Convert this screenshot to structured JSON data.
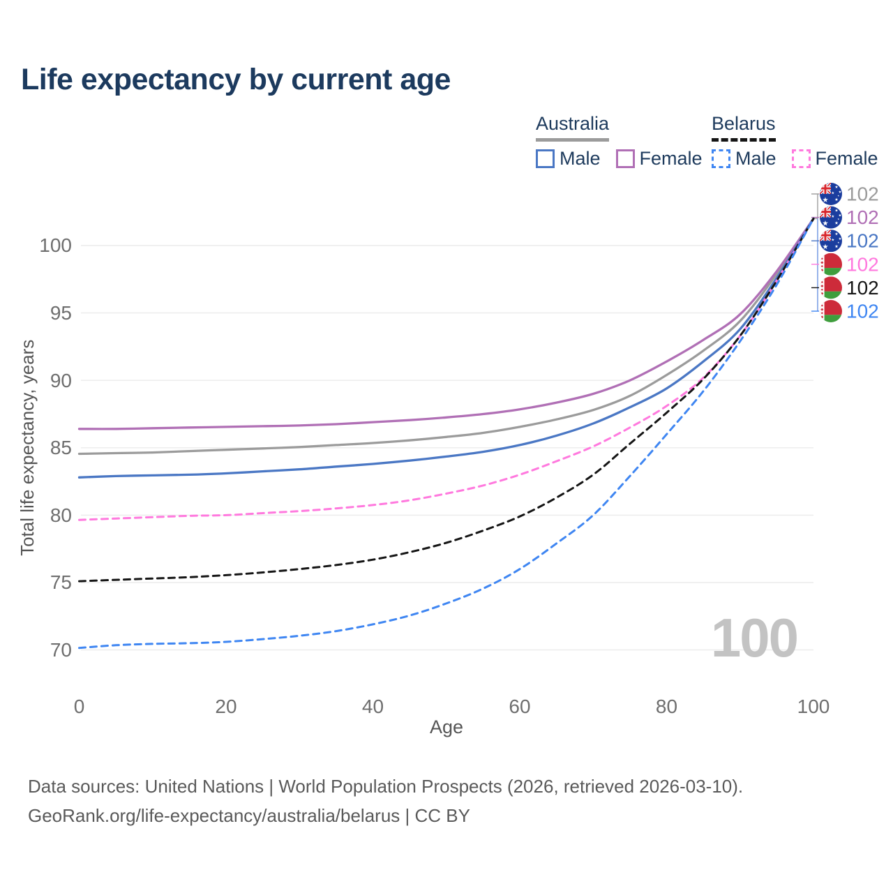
{
  "title": "Life expectancy by current age",
  "watermark": "100",
  "legend": {
    "groups": [
      {
        "country": "Australia",
        "items": [
          {
            "label": "Male"
          },
          {
            "label": "Female"
          }
        ]
      },
      {
        "country": "Belarus",
        "items": [
          {
            "label": "Male"
          },
          {
            "label": "Female"
          }
        ]
      }
    ]
  },
  "footer": {
    "line1": "Data sources: United Nations | World Population Prospects (2026, retrieved 2026-03-10).",
    "line2": "GeoRank.org/life-expectancy/australia/belarus | CC BY"
  },
  "chart_data": {
    "type": "line",
    "title": "Life expectancy by current age",
    "xlabel": "Age",
    "ylabel": "Total life expectancy, years",
    "x_ticks": [
      0,
      20,
      40,
      60,
      80,
      100
    ],
    "y_ticks": [
      70,
      75,
      80,
      85,
      90,
      95,
      100
    ],
    "xlim": [
      0,
      100
    ],
    "ylim": [
      68.5,
      103
    ],
    "grid": "horizontal",
    "legend_position": "top-right",
    "annotation_current_age": "100",
    "x": [
      0,
      5,
      10,
      15,
      20,
      25,
      30,
      35,
      40,
      45,
      50,
      55,
      60,
      65,
      70,
      75,
      80,
      85,
      90,
      95,
      100
    ],
    "series": [
      {
        "id": "australia-total",
        "name": "Australia Total",
        "country": "Australia",
        "sex": "Total",
        "color": "#9b9b9b",
        "style": "solid",
        "flag": "australia-flag-icon",
        "end_label": "102",
        "values": [
          84.55,
          84.6,
          84.65,
          84.75,
          84.85,
          84.95,
          85.05,
          85.2,
          85.35,
          85.55,
          85.8,
          86.1,
          86.55,
          87.1,
          87.8,
          88.85,
          90.4,
          92.2,
          94.4,
          97.9,
          102
        ]
      },
      {
        "id": "australia-female",
        "name": "Australia Female",
        "country": "Australia",
        "sex": "Female",
        "color": "#b06fb5",
        "style": "solid",
        "flag": "australia-flag-icon",
        "end_label": "102",
        "values": [
          86.4,
          86.4,
          86.45,
          86.5,
          86.55,
          86.6,
          86.65,
          86.75,
          86.9,
          87.05,
          87.25,
          87.5,
          87.85,
          88.35,
          89.0,
          90.0,
          91.4,
          93.0,
          94.9,
          98.1,
          102
        ]
      },
      {
        "id": "australia-male",
        "name": "Australia Male",
        "country": "Australia",
        "sex": "Male",
        "color": "#4a77c4",
        "style": "solid",
        "flag": "australia-flag-icon",
        "end_label": "102",
        "values": [
          82.8,
          82.9,
          82.95,
          83.0,
          83.1,
          83.25,
          83.4,
          83.6,
          83.8,
          84.05,
          84.35,
          84.7,
          85.2,
          85.9,
          86.8,
          88.0,
          89.4,
          91.4,
          93.8,
          97.6,
          102
        ]
      },
      {
        "id": "belarus-female",
        "name": "Belarus Female",
        "country": "Belarus",
        "sex": "Female",
        "color": "#ff79de",
        "style": "dashed",
        "flag": "belarus-flag-icon",
        "end_label": "102",
        "values": [
          79.65,
          79.75,
          79.85,
          79.95,
          80.0,
          80.15,
          80.3,
          80.5,
          80.75,
          81.1,
          81.6,
          82.2,
          83.0,
          84.0,
          85.1,
          86.5,
          88.1,
          90.2,
          93.3,
          97.4,
          102
        ]
      },
      {
        "id": "belarus-total",
        "name": "Belarus Total",
        "country": "Belarus",
        "sex": "Total",
        "color": "#151515",
        "style": "dashed",
        "flag": "belarus-flag-icon",
        "end_label": "102",
        "values": [
          75.1,
          75.2,
          75.3,
          75.4,
          75.55,
          75.75,
          76.0,
          76.3,
          76.7,
          77.25,
          77.95,
          78.85,
          79.9,
          81.3,
          83.0,
          85.3,
          87.6,
          90.1,
          93.3,
          97.4,
          102
        ]
      },
      {
        "id": "belarus-male",
        "name": "Belarus Male",
        "country": "Belarus",
        "sex": "Male",
        "color": "#3f86f2",
        "style": "dashed",
        "flag": "belarus-flag-icon",
        "end_label": "102",
        "values": [
          70.15,
          70.35,
          70.45,
          70.5,
          70.6,
          70.8,
          71.05,
          71.4,
          71.9,
          72.55,
          73.45,
          74.55,
          76.0,
          77.9,
          80.0,
          82.9,
          86.0,
          89.2,
          92.9,
          97.1,
          102
        ]
      }
    ]
  }
}
